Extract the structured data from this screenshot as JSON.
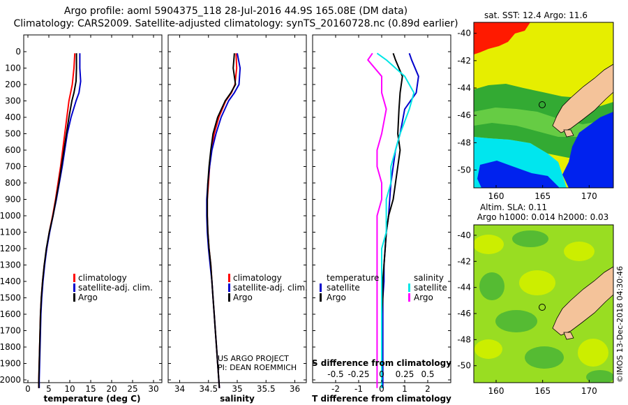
{
  "header": {
    "line1": "Argo profile: aoml 5904375_118 28-Jul-2016 44.9S 165.08E (DM data)",
    "line2": "Climatology: CARS2009. Satellite-adjusted climatology: synTS_20160728.nc (0.89d earlier)"
  },
  "colors": {
    "red": "#ff0000",
    "blue": "#0000cc",
    "black": "#000000",
    "cyan": "#00e6e6",
    "magenta": "#ff00ff"
  },
  "depth_ticks": [
    0,
    100,
    200,
    300,
    400,
    500,
    600,
    700,
    800,
    900,
    1000,
    1100,
    1200,
    1300,
    1400,
    1500,
    1600,
    1700,
    1800,
    1900,
    2000
  ],
  "chart_data": [
    {
      "type": "line",
      "id": "temperature",
      "xlabel": "temperature (deg C)",
      "xlim": [
        -1,
        32
      ],
      "ylim": [
        2060,
        0
      ],
      "xticks": [
        0,
        5,
        10,
        15,
        20,
        25,
        30
      ],
      "legend": [
        "climatology",
        "satellite-adj. clim.",
        "Argo"
      ],
      "series": [
        {
          "name": "climatology",
          "color": "red",
          "x": [
            11.2,
            11.0,
            10.6,
            10.2,
            9.8,
            9.3,
            8.8,
            8.3,
            7.8,
            7.2,
            6.6,
            5.9,
            5.1,
            4.5,
            3.9,
            3.5,
            3.2,
            3.0,
            2.9,
            2.8,
            2.7,
            2.6,
            2.6
          ],
          "y": [
            10,
            100,
            200,
            250,
            300,
            400,
            500,
            600,
            700,
            800,
            900,
            1000,
            1100,
            1200,
            1300,
            1400,
            1500,
            1600,
            1700,
            1800,
            1900,
            2000,
            2050
          ]
        },
        {
          "name": "satellite-adj. clim.",
          "color": "blue",
          "x": [
            12.4,
            12.4,
            12.6,
            12.2,
            11.5,
            10.3,
            9.4,
            8.8,
            8.2,
            7.5,
            6.8,
            6.0,
            5.2,
            4.5,
            4.0,
            3.6,
            3.3,
            3.1,
            3.0,
            2.9,
            2.8,
            2.7,
            2.7
          ],
          "y": [
            10,
            100,
            180,
            250,
            300,
            400,
            500,
            600,
            700,
            800,
            900,
            1000,
            1100,
            1200,
            1300,
            1400,
            1500,
            1600,
            1700,
            1800,
            1900,
            2000,
            2050
          ]
        },
        {
          "name": "Argo",
          "color": "black",
          "x": [
            11.6,
            11.6,
            11.5,
            11.0,
            10.5,
            9.8,
            9.2,
            8.6,
            8.0,
            7.4,
            6.7,
            6.0,
            5.1,
            4.4,
            3.9,
            3.5,
            3.2,
            3.0,
            2.9,
            2.8,
            2.7,
            2.6,
            2.6
          ],
          "y": [
            10,
            100,
            180,
            250,
            300,
            400,
            500,
            600,
            700,
            800,
            900,
            1000,
            1100,
            1200,
            1300,
            1400,
            1500,
            1600,
            1700,
            1800,
            1900,
            2000,
            2050
          ]
        }
      ]
    },
    {
      "type": "line",
      "id": "salinity",
      "xlabel": "salinity",
      "xlim": [
        33.8,
        36.2
      ],
      "ylim": [
        2060,
        0
      ],
      "xticks": [
        34,
        34.5,
        35,
        35.5,
        36
      ],
      "legend": [
        "climatology",
        "satellite-adj. clim.",
        "Argo"
      ],
      "series": [
        {
          "name": "climatology",
          "color": "red",
          "x": [
            34.98,
            34.99,
            34.96,
            34.9,
            34.8,
            34.68,
            34.6,
            34.55,
            34.52,
            34.5,
            34.48,
            34.48,
            34.49,
            34.51,
            34.54,
            34.56,
            34.58,
            34.6,
            34.62,
            34.64,
            34.66,
            34.68,
            34.69
          ],
          "y": [
            10,
            100,
            200,
            250,
            300,
            400,
            500,
            600,
            700,
            800,
            900,
            1000,
            1100,
            1200,
            1300,
            1400,
            1500,
            1600,
            1700,
            1800,
            1900,
            2000,
            2050
          ]
        },
        {
          "name": "satellite-adj. clim.",
          "color": "blue",
          "x": [
            35.0,
            35.05,
            35.03,
            34.95,
            34.85,
            34.72,
            34.63,
            34.56,
            34.52,
            34.49,
            34.47,
            34.47,
            34.48,
            34.5,
            34.53,
            34.56,
            34.58,
            34.6,
            34.62,
            34.64,
            34.66,
            34.68,
            34.69
          ],
          "y": [
            10,
            100,
            200,
            250,
            300,
            400,
            500,
            600,
            700,
            800,
            900,
            1000,
            1100,
            1200,
            1300,
            1400,
            1500,
            1600,
            1700,
            1800,
            1900,
            2000,
            2050
          ]
        },
        {
          "name": "Argo",
          "color": "black",
          "x": [
            34.95,
            34.93,
            34.97,
            34.89,
            34.79,
            34.66,
            34.58,
            34.54,
            34.51,
            34.49,
            34.48,
            34.48,
            34.49,
            34.51,
            34.54,
            34.56,
            34.58,
            34.6,
            34.62,
            34.64,
            34.66,
            34.68,
            34.69
          ],
          "y": [
            10,
            100,
            200,
            250,
            300,
            400,
            500,
            600,
            700,
            800,
            900,
            1000,
            1100,
            1200,
            1300,
            1400,
            1500,
            1600,
            1700,
            1800,
            1900,
            2000,
            2050
          ]
        }
      ]
    },
    {
      "type": "line",
      "id": "difference",
      "xlabel": "T difference from climatology",
      "secondary_xlabel": "S difference from climatology",
      "xlim": [
        -3,
        3
      ],
      "ylim": [
        2060,
        0
      ],
      "xticks": [
        -2,
        -1,
        0,
        1,
        2
      ],
      "secondary_xticks": [
        "-0.5",
        "-0.25",
        "0",
        "0.25",
        "0.5"
      ],
      "legend_temperature": {
        "title": "temperature",
        "items": [
          "satellite",
          "Argo"
        ]
      },
      "legend_salinity": {
        "title": "salinity",
        "items": [
          "satellite",
          "Argo"
        ]
      },
      "series": [
        {
          "name": "temperature satellite",
          "color": "blue",
          "x": [
            1.2,
            1.3,
            1.6,
            1.5,
            1.0,
            0.8,
            0.6,
            0.5,
            0.4,
            0.35,
            0.3,
            0.2,
            0.15,
            0.1,
            0.1,
            0.05,
            0.05,
            0.05,
            0.05,
            0.05,
            0.05,
            0.05
          ],
          "y": [
            10,
            50,
            150,
            250,
            350,
            500,
            600,
            700,
            800,
            900,
            1000,
            1100,
            1200,
            1300,
            1400,
            1500,
            1600,
            1700,
            1800,
            1900,
            2000,
            2050
          ]
        },
        {
          "name": "temperature Argo",
          "color": "black",
          "x": [
            0.5,
            0.6,
            0.9,
            0.8,
            0.75,
            0.7,
            0.8,
            0.7,
            0.6,
            0.5,
            0.3,
            0.2,
            0.15,
            0.1,
            0.05,
            0.05,
            0.0,
            0.0,
            0.0,
            0.0,
            0.0,
            0.0
          ],
          "y": [
            10,
            50,
            150,
            250,
            350,
            500,
            600,
            700,
            800,
            900,
            1000,
            1100,
            1200,
            1300,
            1400,
            1500,
            1600,
            1700,
            1800,
            1900,
            2000,
            2050
          ]
        },
        {
          "name": "salinity satellite",
          "color": "cyan",
          "x": [
            -0.05,
            0.05,
            0.25,
            0.35,
            0.3,
            0.2,
            0.15,
            0.1,
            0.1,
            0.05,
            0.05,
            0.05,
            0.0,
            0.0,
            0.0,
            0.0,
            0.0,
            0.0,
            0.0,
            0.0,
            0.0,
            0.0
          ],
          "y": [
            10,
            50,
            150,
            250,
            350,
            500,
            600,
            700,
            800,
            900,
            1000,
            1100,
            1200,
            1300,
            1400,
            1500,
            1600,
            1700,
            1800,
            1900,
            2000,
            2050
          ]
        },
        {
          "name": "salinity Argo",
          "color": "magenta",
          "x": [
            -0.1,
            -0.15,
            0.0,
            0.0,
            0.05,
            0.0,
            -0.05,
            -0.05,
            0.0,
            0.0,
            -0.05,
            -0.05,
            -0.05,
            -0.05,
            -0.05,
            -0.05,
            -0.05,
            -0.05,
            -0.05,
            -0.05,
            -0.05,
            -0.05
          ],
          "y": [
            10,
            50,
            150,
            250,
            350,
            500,
            600,
            700,
            800,
            900,
            1000,
            1100,
            1200,
            1300,
            1400,
            1500,
            1600,
            1700,
            1800,
            1900,
            2000,
            2050
          ]
        }
      ]
    },
    {
      "type": "heatmap",
      "id": "sst-map",
      "title": "sat. SST: 12.4 Argo: 11.6",
      "xticks": [
        160,
        165,
        170
      ],
      "yticks": [
        -40,
        -42,
        -44,
        -46,
        -48,
        -50
      ],
      "profile_location": [
        165.08,
        -44.9
      ]
    },
    {
      "type": "heatmap",
      "id": "sla-map",
      "title_line1": "Altim. SLA: 0.11",
      "title_line2": "Argo h1000: 0.014 h2000: 0.03",
      "xticks": [
        160,
        165,
        170
      ],
      "yticks": [
        -40,
        -42,
        -44,
        -46,
        -48,
        -50
      ],
      "profile_location": [
        165.08,
        -44.9
      ]
    }
  ],
  "footer": {
    "credit_line1": "US ARGO PROJECT",
    "credit_line2": "PI: DEAN ROEMMICH",
    "watermark": "©IMOS 13-Dec-2018 04:30:46"
  }
}
